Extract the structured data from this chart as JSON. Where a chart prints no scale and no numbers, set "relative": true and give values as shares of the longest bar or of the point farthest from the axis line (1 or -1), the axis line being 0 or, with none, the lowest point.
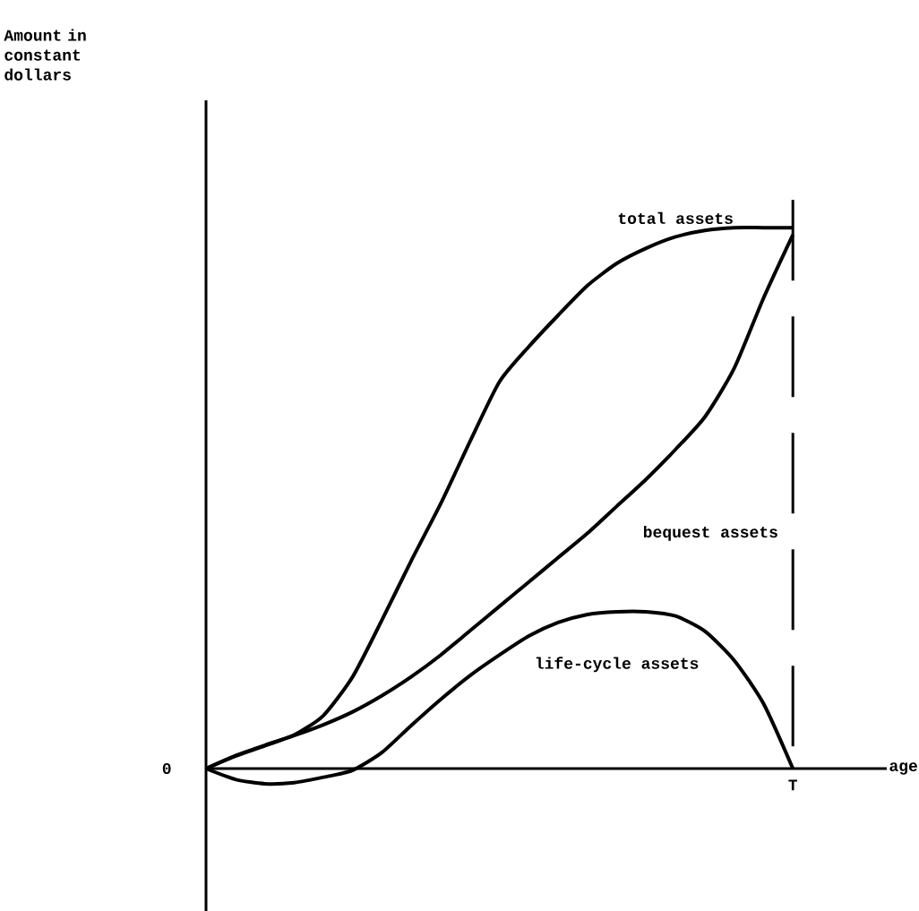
{
  "chart_data": {
    "type": "line",
    "relative": true,
    "categories": [
      null,
      null,
      null,
      null,
      null,
      null,
      null,
      null,
      null,
      null,
      null,
      null,
      null,
      null,
      null,
      null,
      null,
      null,
      null,
      null,
      null
    ],
    "series": [
      {
        "name": "total assets",
        "color": "#000000",
        "values": [
          0,
          0.023,
          0.042,
          0.062,
          0.098,
          0.17,
          0.275,
          0.385,
          0.49,
          0.605,
          0.715,
          0.78,
          0.838,
          0.893,
          0.934,
          0.962,
          0.983,
          0.995,
          1.0,
          1.0,
          1.0
        ]
      },
      {
        "name": "bequest assets",
        "color": "#000000",
        "values": [
          0,
          0.024,
          0.043,
          0.061,
          0.081,
          0.105,
          0.135,
          0.17,
          0.21,
          0.255,
          0.3,
          0.345,
          0.39,
          0.435,
          0.485,
          0.535,
          0.59,
          0.65,
          0.74,
          0.87,
          0.987
        ]
      },
      {
        "name": "life-cycle assets",
        "color": "#000000",
        "values": [
          0,
          -0.02,
          -0.028,
          -0.026,
          -0.016,
          -0.003,
          0.03,
          0.08,
          0.128,
          0.172,
          0.21,
          0.245,
          0.27,
          0.285,
          0.29,
          0.29,
          0.282,
          0.254,
          0.2,
          0.12,
          0
        ]
      }
    ],
    "annotations": [
      "Amount in constant dollars",
      "0",
      "T",
      "age"
    ],
    "line_style": "solid",
    "marker": "none"
  }
}
